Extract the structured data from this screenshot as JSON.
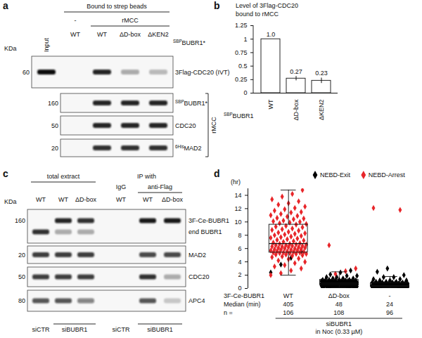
{
  "panel_a": {
    "letter": "a",
    "header": {
      "label": "Bound to strep beads",
      "lanes": [
        1,
        2,
        3,
        4
      ]
    },
    "groups": [
      {
        "label": "-",
        "lanes": [
          1
        ]
      },
      {
        "label": "rMCC",
        "lanes": [
          2,
          3,
          4
        ]
      }
    ],
    "input_lane": "Input",
    "lanes": [
      "WT",
      "WT",
      "ΔD-box",
      "ΔKEN2"
    ],
    "lane_row_label": {
      "sup": "SBP",
      "main": "BUBR1*"
    },
    "unit": "KDa",
    "blots": [
      {
        "marker": 60,
        "rows": [
          {
            "label": "3Flag-CDC20 (IVT)",
            "bands": [
              1.0,
              0,
              0.9,
              0.3,
              0.25
            ]
          }
        ]
      },
      {
        "marker": 160,
        "rows": [
          {
            "label": {
              "sup": "SBP",
              "main": "BUBR1*"
            },
            "bands": [
              null,
              0,
              0.9,
              0.9,
              0.9
            ]
          }
        ]
      },
      {
        "marker": 50,
        "rows": [
          {
            "label": "CDC20",
            "bands": [
              null,
              0,
              0.9,
              0.9,
              0.9
            ]
          }
        ]
      },
      {
        "marker": 20,
        "rows": [
          {
            "label": {
              "sup": "6His",
              "main": "MAD2"
            },
            "bands": [
              null,
              0,
              0.85,
              0.85,
              0.85
            ]
          }
        ]
      }
    ],
    "bracket": {
      "label": "rMCC",
      "blots": [
        1,
        2,
        3
      ]
    }
  },
  "panel_c": {
    "letter": "c",
    "top_groups": [
      {
        "label": "total extract",
        "lanes": [
          0,
          1,
          2
        ]
      },
      {
        "label": "IP with",
        "lanes": [
          3,
          4,
          5
        ]
      }
    ],
    "sub_groups": [
      {
        "label": "IgG",
        "lanes": [
          3
        ]
      },
      {
        "label": "anti-Flag",
        "lanes": [
          4,
          5
        ]
      }
    ],
    "lanes": [
      "WT",
      "WT",
      "ΔD-box",
      "WT",
      "WT",
      "ΔD-box"
    ],
    "unit": "KDa",
    "bottom_groups": [
      {
        "label": "siCTR",
        "lanes": [
          0
        ]
      },
      {
        "label": "siBUBR1",
        "lanes": [
          1,
          2
        ]
      },
      {
        "label": "siCTR",
        "lanes": [
          3
        ]
      },
      {
        "label": "siBUBR1",
        "lanes": [
          4,
          5
        ]
      }
    ],
    "blots": [
      {
        "marker": 160,
        "rows": [
          {
            "label": "3F-Ce-BUBR1",
            "bands": [
              0,
              0.9,
              0.85,
              0,
              0.95,
              0.95
            ]
          },
          {
            "label": "end BUBR1",
            "bands": [
              0.85,
              0.3,
              0.3,
              0,
              0,
              0
            ]
          }
        ]
      },
      {
        "marker": 20,
        "rows": [
          {
            "label": "MAD2",
            "bands": [
              0.8,
              0.8,
              0.8,
              0,
              0.75,
              0.75
            ]
          }
        ]
      },
      {
        "marker": 50,
        "rows": [
          {
            "label": "CDC20",
            "bands": [
              0.8,
              0.8,
              0.8,
              0,
              0.85,
              0.3
            ]
          }
        ]
      },
      {
        "marker": 80,
        "rows": [
          {
            "label": "APC4",
            "bands": [
              0.7,
              0.7,
              0.5,
              0,
              0.7,
              0.2
            ]
          }
        ]
      }
    ]
  },
  "chart_data": [
    {
      "letter": "b",
      "type": "bar",
      "title": "Level of 3Flag-CDC20\nbound to rMCC",
      "x_label": {
        "sup": "SBP",
        "main": "BUBR1"
      },
      "categories": [
        "WT",
        "ΔD-box",
        "ΔKEN2"
      ],
      "values": [
        1.0,
        0.27,
        0.23
      ],
      "value_labels": [
        "1.0",
        "0.27",
        "0.23"
      ],
      "errors": [
        null,
        0.04,
        0.05
      ],
      "color": "#ffffff",
      "data_labels": true,
      "ylim": [
        0,
        1.25
      ],
      "yticks": [
        0,
        0.25,
        0.5,
        0.75,
        1,
        1.25
      ]
    },
    {
      "letter": "d",
      "type": "box_scatter",
      "y_label": "(hr)",
      "legend": "top-right",
      "category_label": "3F-Ce-BUBR1",
      "categories": [
        "WT",
        "ΔD-box",
        "-"
      ],
      "ylim": [
        0,
        15
      ],
      "yticks": [
        0,
        2,
        4,
        6,
        8,
        10,
        12,
        14
      ],
      "box": {
        "whisker_low": [
          2.0,
          0.1,
          0.1
        ],
        "q1": [
          5.4,
          0.5,
          0.25
        ],
        "median": [
          6.75,
          0.8,
          0.4
        ],
        "q3": [
          9.6,
          1.3,
          0.8
        ],
        "whisker_high": [
          14.8,
          2.5,
          1.8
        ]
      },
      "series": [
        {
          "name": "NEBD-Exit",
          "color": "#000000",
          "marker": "diamond",
          "values": [
            [
              2.4,
              3.6,
              4.6,
              5.6
            ],
            [
              0.1,
              0.1,
              0.1,
              0.1,
              0.2,
              0.2,
              0.2,
              0.2,
              0.2,
              0.2,
              0.3,
              0.3,
              0.3,
              0.3,
              0.3,
              0.3,
              0.3,
              0.3,
              0.4,
              0.4,
              0.4,
              0.4,
              0.4,
              0.4,
              0.4,
              0.4,
              0.4,
              0.5,
              0.5,
              0.5,
              0.5,
              0.5,
              0.5,
              0.5,
              0.5,
              0.5,
              0.5,
              0.6,
              0.6,
              0.6,
              0.6,
              0.6,
              0.6,
              0.6,
              0.6,
              0.6,
              0.6,
              0.6,
              0.7,
              0.7,
              0.7,
              0.7,
              0.7,
              0.7,
              0.7,
              0.7,
              0.7,
              0.8,
              0.8,
              0.8,
              0.8,
              0.8,
              0.8,
              0.8,
              0.8,
              0.8,
              0.9,
              0.9,
              0.9,
              0.9,
              0.9,
              0.9,
              0.9,
              0.9,
              1.0,
              1.0,
              1.0,
              1.0,
              1.0,
              1.0,
              1.0,
              1.1,
              1.1,
              1.1,
              1.1,
              1.1,
              1.2,
              1.2,
              1.2,
              1.2,
              1.3,
              1.3,
              1.3,
              1.3,
              1.5,
              1.5,
              1.5,
              1.7,
              1.7,
              1.9,
              1.9,
              2.1,
              2.4,
              2.7
            ],
            [
              0.1,
              0.1,
              0.1,
              0.1,
              0.1,
              0.1,
              0.1,
              0.1,
              0.2,
              0.2,
              0.2,
              0.2,
              0.2,
              0.2,
              0.2,
              0.2,
              0.2,
              0.2,
              0.2,
              0.2,
              0.3,
              0.3,
              0.3,
              0.3,
              0.3,
              0.3,
              0.3,
              0.3,
              0.3,
              0.3,
              0.3,
              0.3,
              0.3,
              0.3,
              0.4,
              0.4,
              0.4,
              0.4,
              0.4,
              0.4,
              0.4,
              0.4,
              0.4,
              0.4,
              0.4,
              0.4,
              0.4,
              0.4,
              0.5,
              0.5,
              0.5,
              0.5,
              0.5,
              0.5,
              0.5,
              0.5,
              0.5,
              0.5,
              0.6,
              0.6,
              0.6,
              0.6,
              0.6,
              0.6,
              0.6,
              0.6,
              0.7,
              0.7,
              0.7,
              0.7,
              0.7,
              0.7,
              0.8,
              0.8,
              0.8,
              0.8,
              0.8,
              0.9,
              0.9,
              0.9,
              0.9,
              1.0,
              1.0,
              1.0,
              1.2,
              1.2,
              1.2,
              1.4,
              1.4,
              1.7,
              1.7,
              2.0,
              2.5,
              3.0
            ]
          ]
        },
        {
          "name": "NEBD-Arrest",
          "color": "#e8262a",
          "marker": "diamond",
          "values": [
            [
              2.0,
              2.3,
              2.7,
              3.0,
              3.3,
              3.5,
              3.8,
              4.0,
              4.2,
              4.4,
              4.5,
              4.7,
              4.8,
              4.9,
              5.0,
              5.1,
              5.1,
              5.2,
              5.2,
              5.3,
              5.3,
              5.4,
              5.4,
              5.4,
              5.5,
              5.5,
              5.6,
              5.6,
              5.7,
              5.7,
              5.8,
              5.8,
              5.9,
              5.9,
              6.0,
              6.0,
              6.1,
              6.1,
              6.2,
              6.2,
              6.3,
              6.3,
              6.4,
              6.4,
              6.5,
              6.5,
              6.6,
              6.6,
              6.7,
              6.7,
              6.8,
              6.9,
              7.0,
              7.1,
              7.2,
              7.3,
              7.4,
              7.5,
              7.6,
              7.7,
              7.8,
              7.9,
              8.0,
              8.1,
              8.2,
              8.3,
              8.4,
              8.5,
              8.7,
              8.8,
              8.9,
              9.0,
              9.2,
              9.3,
              9.4,
              9.6,
              9.7,
              9.8,
              9.9,
              10.0,
              10.1,
              10.2,
              10.4,
              10.5,
              10.6,
              10.8,
              10.9,
              11.0,
              11.2,
              11.4,
              11.5,
              11.7,
              11.9,
              12.1,
              12.3,
              12.6,
              12.8,
              13.1,
              13.4,
              13.8,
              14.2,
              14.8
            ],
            [
              2.2,
              2.6,
              3.0,
              6.5
            ],
            [
              11.8,
              12.1
            ]
          ]
        }
      ],
      "rows": [
        {
          "label": "Median (min)",
          "values": [
            405,
            48,
            24
          ]
        },
        {
          "label": "n =",
          "values": [
            106,
            108,
            96
          ]
        }
      ],
      "condition": [
        "siBUBR1",
        "in Noc (0.33 µM)"
      ]
    }
  ]
}
